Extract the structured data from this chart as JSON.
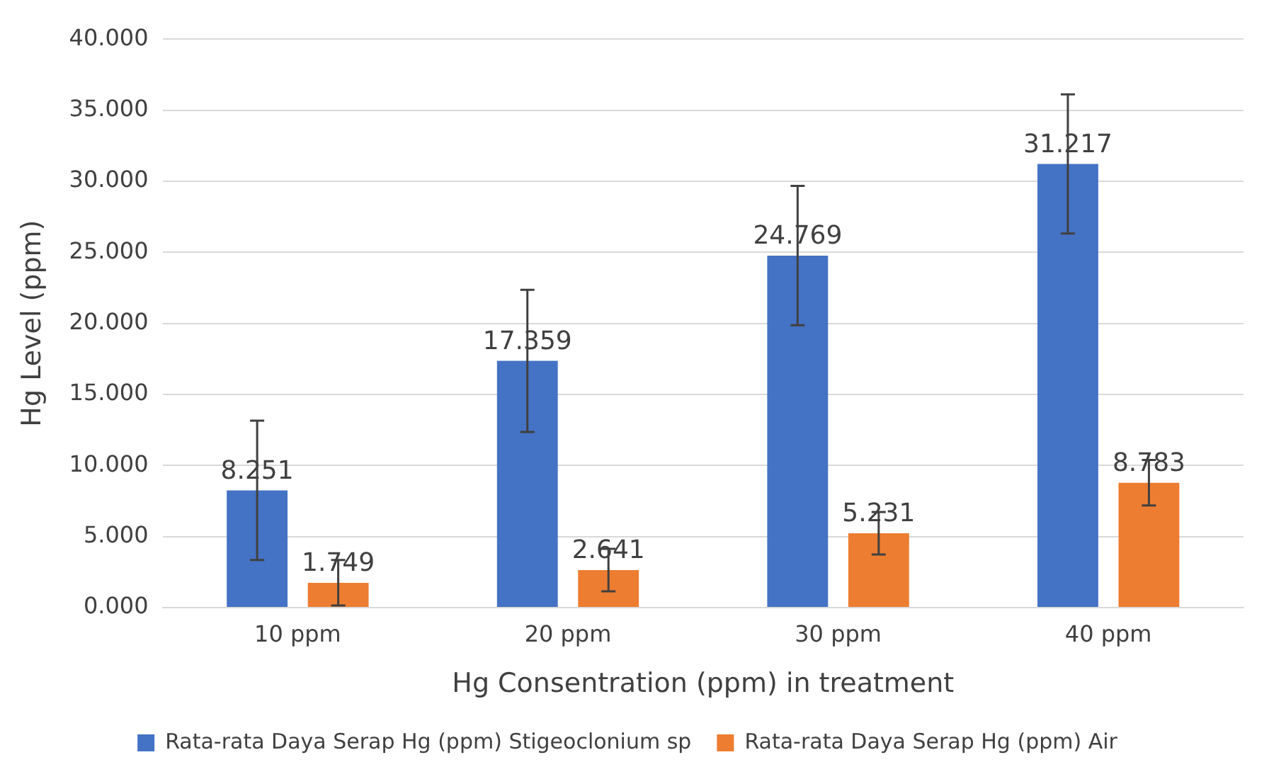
{
  "chart_data": {
    "type": "bar",
    "xlabel": "Hg Consentration (ppm) in treatment",
    "ylabel": "Hg Level (ppm)",
    "categories": [
      "10 ppm",
      "20 ppm",
      "30 ppm",
      "40 ppm"
    ],
    "series": [
      {
        "name": "Rata-rata Daya Serap Hg (ppm) Stigeoclonium sp",
        "color": "#4472c4",
        "values": [
          8.251,
          17.359,
          24.769,
          31.217
        ],
        "errors": [
          4.9,
          5.0,
          4.9,
          4.9
        ]
      },
      {
        "name": "Rata-rata Daya Serap Hg (ppm) Air",
        "color": "#ed7d31",
        "values": [
          1.749,
          2.641,
          5.231,
          8.783
        ],
        "errors": [
          1.6,
          1.5,
          1.5,
          1.6
        ]
      }
    ],
    "ylim": [
      0,
      40
    ],
    "yticks": [
      {
        "value": 0,
        "label": "0.000"
      },
      {
        "value": 5,
        "label": "5.000"
      },
      {
        "value": 10,
        "label": "10.000"
      },
      {
        "value": 15,
        "label": "15.000"
      },
      {
        "value": 20,
        "label": "20.000"
      },
      {
        "value": 25,
        "label": "25.000"
      },
      {
        "value": 30,
        "label": "30.000"
      },
      {
        "value": 35,
        "label": "35.000"
      },
      {
        "value": 40,
        "label": "40.000"
      }
    ],
    "grid": "y",
    "legend": "bottom",
    "data_labels": true
  }
}
